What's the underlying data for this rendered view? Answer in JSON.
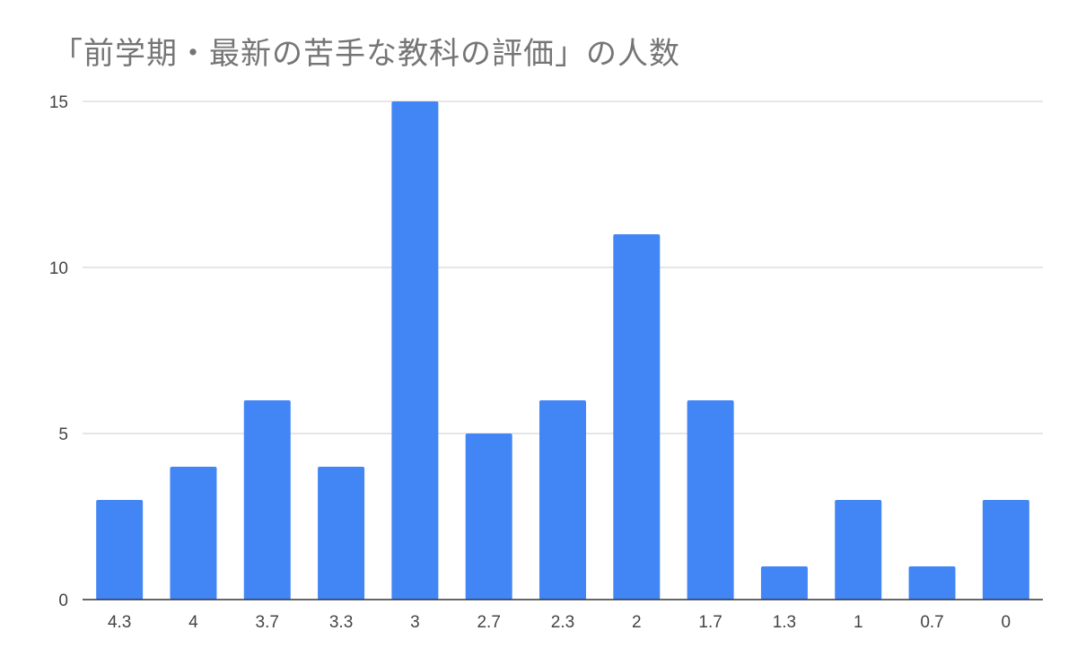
{
  "chart_data": {
    "type": "bar",
    "title": "「前学期・最新の苦手な教科の評価」の人数",
    "categories": [
      "4.3",
      "4",
      "3.7",
      "3.3",
      "3",
      "2.7",
      "2.3",
      "2",
      "1.7",
      "1.3",
      "1",
      "0.7",
      "0"
    ],
    "values": [
      3,
      4,
      6,
      4,
      15,
      5,
      6,
      11,
      6,
      1,
      3,
      1,
      3
    ],
    "xlabel": "",
    "ylabel": "",
    "ylim": [
      0,
      15
    ],
    "yticks": [
      "0",
      "5",
      "10",
      "15"
    ],
    "grid": true,
    "legend": "none",
    "colors": {
      "bar": "#4285f4",
      "grid": "#cccccc",
      "axis": "#333333"
    }
  }
}
